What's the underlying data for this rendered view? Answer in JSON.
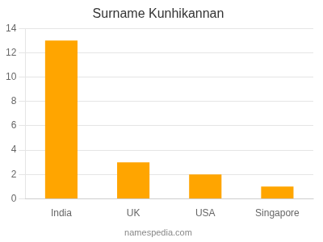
{
  "chart_data": {
    "type": "bar",
    "title": "Surname Kunhikannan",
    "categories": [
      "India",
      "UK",
      "USA",
      "Singapore"
    ],
    "values": [
      13,
      3,
      2,
      1
    ],
    "color": "#FFA500",
    "ylim": [
      0,
      14
    ],
    "yticks": [
      0,
      2,
      4,
      6,
      8,
      10,
      12,
      14
    ],
    "grid": true,
    "annotations": [
      "namespedia.com"
    ]
  }
}
